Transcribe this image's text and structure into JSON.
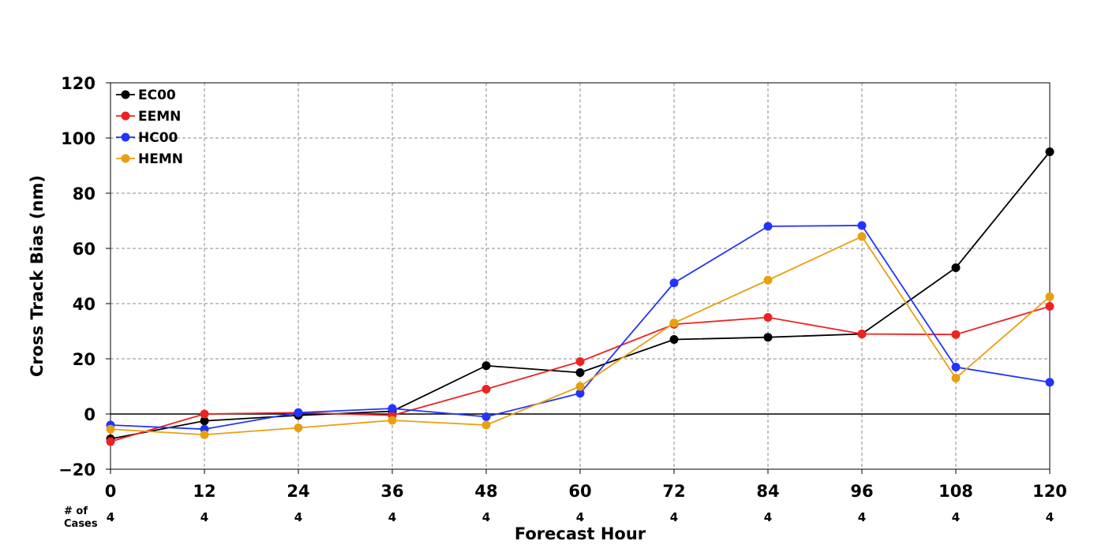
{
  "chart_data": {
    "type": "line",
    "xlabel": "Forecast Hour",
    "ylabel": "Cross Track Bias (nm)",
    "x": [
      0,
      12,
      24,
      36,
      48,
      60,
      72,
      84,
      96,
      108,
      120
    ],
    "x_tick_labels": [
      "0",
      "12",
      "24",
      "36",
      "48",
      "60",
      "72",
      "84",
      "96",
      "108",
      "120"
    ],
    "xlim": [
      0,
      120
    ],
    "ylim": [
      -20,
      120
    ],
    "y_ticks": [
      -20,
      0,
      20,
      40,
      60,
      80,
      100,
      120
    ],
    "y_tick_labels": [
      "−20",
      "0",
      "20",
      "40",
      "60",
      "80",
      "100",
      "120"
    ],
    "grid": true,
    "zero_line": true,
    "legend_position": "top-left",
    "cases_label_line1": "# of",
    "cases_label_line2": "Cases",
    "cases": [
      "4",
      "4",
      "4",
      "4",
      "4",
      "4",
      "4",
      "4",
      "4",
      "4",
      "4"
    ],
    "series": [
      {
        "name": "EC00",
        "color": "#000000",
        "values": [
          -9,
          -2.5,
          -0.5,
          1,
          17.5,
          15,
          27,
          27.8,
          29,
          53,
          95
        ]
      },
      {
        "name": "EEMN",
        "color": "#ee2222",
        "values": [
          -10,
          0,
          0.5,
          -0.5,
          9,
          19,
          32.5,
          35,
          29,
          28.8,
          39
        ]
      },
      {
        "name": "HC00",
        "color": "#2233ff",
        "values": [
          -4,
          -5.5,
          0.5,
          2,
          -1,
          7.5,
          47.5,
          68,
          68.3,
          17,
          11.5
        ]
      },
      {
        "name": "HEMN",
        "color": "#e8a010",
        "values": [
          -5.5,
          -7.5,
          -5,
          -2.3,
          -4,
          10,
          33,
          48.5,
          64.3,
          13,
          42.5
        ]
      }
    ]
  }
}
